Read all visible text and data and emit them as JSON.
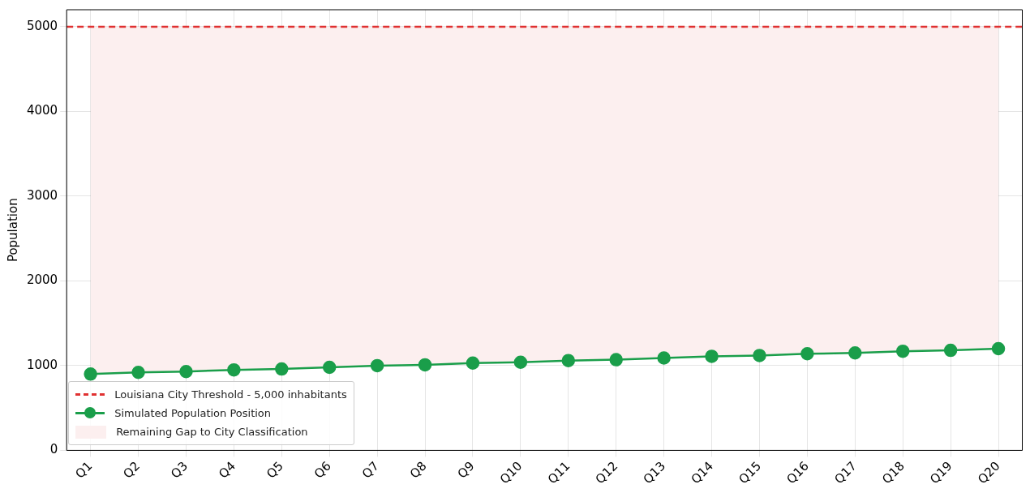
{
  "chart_data": {
    "type": "line",
    "ylabel": "Population",
    "categories": [
      "Q1",
      "Q2",
      "Q3",
      "Q4",
      "Q5",
      "Q6",
      "Q7",
      "Q8",
      "Q9",
      "Q10",
      "Q11",
      "Q12",
      "Q13",
      "Q14",
      "Q15",
      "Q16",
      "Q17",
      "Q18",
      "Q19",
      "Q20"
    ],
    "series": [
      {
        "name": "Simulated Population Position",
        "color": "#1a9e4a",
        "marker": "circle",
        "line_style": "solid",
        "values": [
          900,
          920,
          930,
          950,
          960,
          980,
          1000,
          1010,
          1030,
          1040,
          1060,
          1070,
          1090,
          1110,
          1120,
          1140,
          1150,
          1170,
          1180,
          1200
        ]
      },
      {
        "type": "area",
        "name": "Remaining Gap to City Classification",
        "color": "#fcefef",
        "values": [
          5000,
          5000,
          5000,
          5000,
          5000,
          5000,
          5000,
          5000,
          5000,
          5000,
          5000,
          5000,
          5000,
          5000,
          5000,
          5000,
          5000,
          5000,
          5000,
          5000
        ]
      }
    ],
    "ref_lines": [
      {
        "axis": "y",
        "value": 5000,
        "label": "Louisiana City Threshold - 5,000 inhabitants",
        "color": "#e03131",
        "line_style": "dashed"
      }
    ],
    "ylim": [
      0,
      5200
    ],
    "yticks": [
      0,
      1000,
      2000,
      3000,
      4000,
      5000
    ],
    "grid": true,
    "legend": "bottom left"
  }
}
